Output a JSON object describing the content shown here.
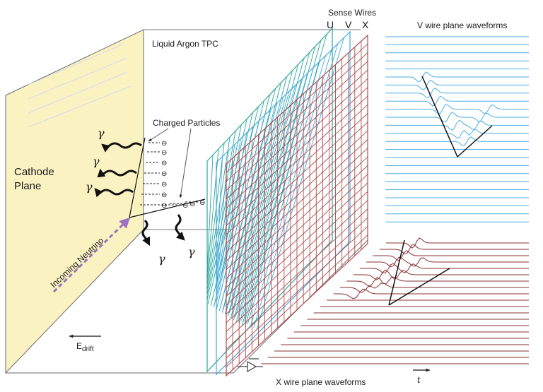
{
  "labels": {
    "tpc_title": "Liquid Argon TPC",
    "sense_wires": "Sense Wires",
    "plane_u": "U",
    "plane_v": "V",
    "plane_x": "X",
    "v_waveforms": "V wire plane waveforms",
    "x_waveforms": "X wire plane waveforms",
    "cathode_line1": "Cathode",
    "cathode_line2": "Plane",
    "charged_particles": "Charged Particles",
    "incoming_neutrino": "Incoming Neutrino",
    "edrift_main": "E",
    "edrift_sub": "drift",
    "time_axis": "t",
    "gamma": "γ",
    "electron": "⊖"
  },
  "colors": {
    "cathode_fill": "#fbf2c2",
    "u_wire": "#2aa79c",
    "v_wire": "#3fa9e0",
    "x_wire": "#b04a4a",
    "v_waveform": "#4aaee6",
    "x_waveform": "#8a3030",
    "neutrino": "#9a72c0",
    "box_line": "#6a6a6a",
    "ink": "#111111"
  },
  "waveforms": {
    "v_peaks": [
      {
        "line": 5,
        "t": 0.26,
        "amp": 1.0
      },
      {
        "line": 6,
        "t": 0.29,
        "amp": 1.0
      },
      {
        "line": 7,
        "t": 0.32,
        "amp": 1.0
      },
      {
        "line": 8,
        "t": 0.36,
        "amp": 1.0
      },
      {
        "line": 9,
        "t": 0.4,
        "amp": 1.0
      },
      {
        "line": 10,
        "t": 0.44,
        "amp": 1.0
      },
      {
        "line": 11,
        "t": 0.49,
        "amp": 1.0
      },
      {
        "line": 12,
        "t": 0.53,
        "amp": 1.0
      },
      {
        "line": 13,
        "t": 0.57,
        "amp": 0.9
      },
      {
        "line": 9,
        "t": 0.72,
        "amp": 0.9
      },
      {
        "line": 10,
        "t": 0.68,
        "amp": 0.9
      },
      {
        "line": 11,
        "t": 0.64,
        "amp": 0.9
      },
      {
        "line": 12,
        "t": 0.6,
        "amp": 0.8
      }
    ],
    "x_peaks": [
      {
        "line": 0,
        "t": 0.21,
        "amp": 1.0
      },
      {
        "line": 1,
        "t": 0.2,
        "amp": 1.0
      },
      {
        "line": 2,
        "t": 0.19,
        "amp": 1.0
      },
      {
        "line": 3,
        "t": 0.18,
        "amp": 1.0
      },
      {
        "line": 4,
        "t": 0.17,
        "amp": 1.0
      },
      {
        "line": 5,
        "t": 0.16,
        "amp": 1.0
      },
      {
        "line": 6,
        "t": 0.15,
        "amp": 1.0
      },
      {
        "line": 7,
        "t": 0.14,
        "amp": 1.0
      },
      {
        "line": 8,
        "t": 0.13,
        "amp": 1.0
      },
      {
        "line": 3,
        "t": 0.32,
        "amp": 0.9
      },
      {
        "line": 4,
        "t": 0.29,
        "amp": 0.9
      },
      {
        "line": 5,
        "t": 0.26,
        "amp": 0.9
      },
      {
        "line": 6,
        "t": 0.23,
        "amp": 0.9
      },
      {
        "line": 7,
        "t": 0.2,
        "amp": 0.9
      }
    ]
  }
}
